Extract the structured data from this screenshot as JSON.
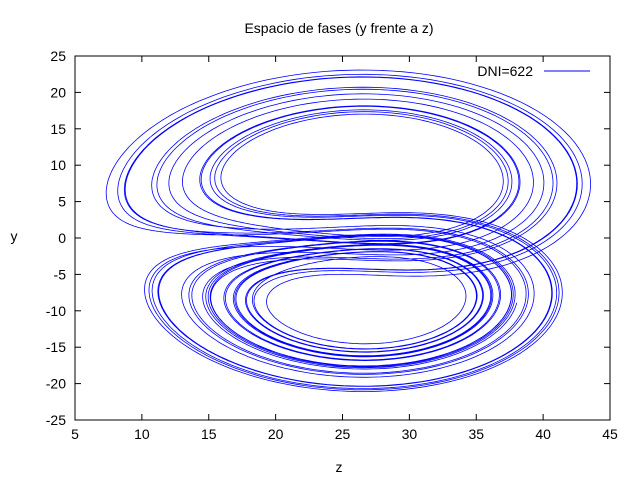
{
  "chart_data": {
    "type": "line",
    "title": "Espacio de fases (y frente a z)",
    "xlabel": "z",
    "ylabel": "y",
    "xlim": [
      5,
      45
    ],
    "ylim": [
      -25,
      25
    ],
    "xticks": [
      5,
      10,
      15,
      20,
      25,
      30,
      35,
      40,
      45
    ],
    "yticks": [
      -25,
      -20,
      -15,
      -10,
      -5,
      0,
      5,
      10,
      15,
      20,
      25
    ],
    "grid": false,
    "legend_position": "top-right",
    "series": [
      {
        "name": "DNI=622",
        "color": "#0000ff",
        "upper_loop_center": [
          27,
          7.5
        ],
        "lower_loop_center": [
          27,
          -7.5
        ],
        "max_extent": {
          "z": [
            5.8,
            44.6
          ],
          "y": [
            -24.0,
            23.5
          ]
        }
      }
    ]
  }
}
